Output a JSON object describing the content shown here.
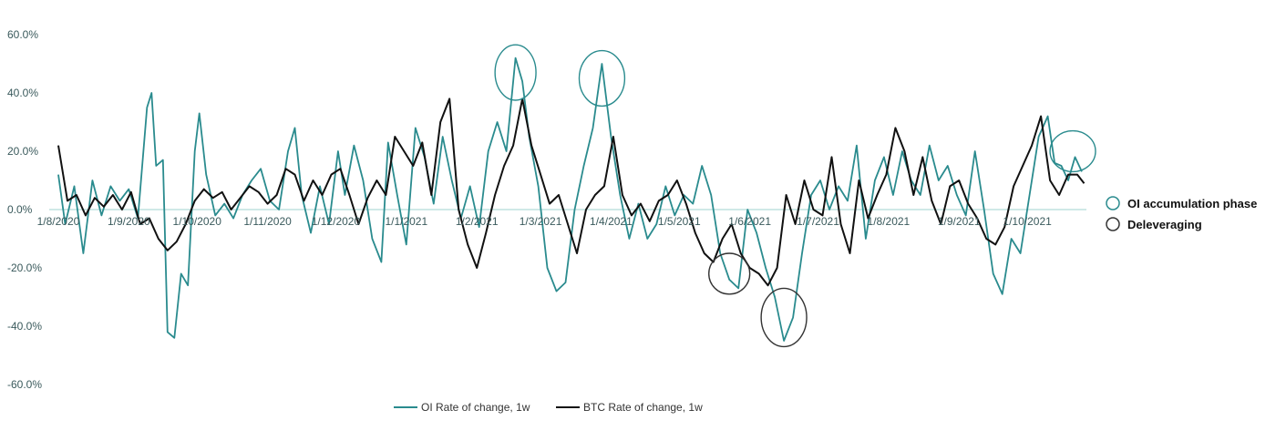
{
  "chart_data": {
    "type": "line",
    "title": "",
    "xlabel": "",
    "ylabel": "",
    "ylim": [
      -60,
      60
    ],
    "yticks": [
      60,
      40,
      20,
      0,
      -20,
      -40,
      -60
    ],
    "ytick_labels": [
      "60.0%",
      "40.0%",
      "20.0%",
      "0.0%",
      "-20.0%",
      "-40.0%",
      "-60.0%"
    ],
    "xlim": [
      "2020-07-28",
      "2021-10-27"
    ],
    "xticks": [
      {
        "date": "2020-08-01",
        "label": "1/8/2020"
      },
      {
        "date": "2020-09-01",
        "label": "1/9/2020"
      },
      {
        "date": "2020-10-01",
        "label": "1/10/2020"
      },
      {
        "date": "2020-11-01",
        "label": "1/11/2020"
      },
      {
        "date": "2020-12-01",
        "label": "1/12/2020"
      },
      {
        "date": "2021-01-01",
        "label": "1/1/2021"
      },
      {
        "date": "2021-02-01",
        "label": "1/2/2021"
      },
      {
        "date": "2021-03-01",
        "label": "1/3/2021"
      },
      {
        "date": "2021-04-01",
        "label": "1/4/2021"
      },
      {
        "date": "2021-05-01",
        "label": "1/5/2021"
      },
      {
        "date": "2021-06-01",
        "label": "1/6/2021"
      },
      {
        "date": "2021-07-01",
        "label": "1/7/2021"
      },
      {
        "date": "2021-08-01",
        "label": "1/8/2021"
      },
      {
        "date": "2021-09-01",
        "label": "1/9/2021"
      },
      {
        "date": "2021-10-01",
        "label": "1/10/2021"
      }
    ],
    "grid": false,
    "legend_position": "bottom",
    "series": [
      {
        "name": "OI Rate of change, 1w",
        "color": "#2a8b8e",
        "points": [
          [
            "2020-08-01",
            12
          ],
          [
            "2020-08-04",
            -5
          ],
          [
            "2020-08-08",
            8
          ],
          [
            "2020-08-12",
            -15
          ],
          [
            "2020-08-16",
            10
          ],
          [
            "2020-08-20",
            -2
          ],
          [
            "2020-08-24",
            8
          ],
          [
            "2020-08-28",
            3
          ],
          [
            "2020-09-01",
            7
          ],
          [
            "2020-09-05",
            -3
          ],
          [
            "2020-09-09",
            35
          ],
          [
            "2020-09-11",
            40
          ],
          [
            "2020-09-13",
            15
          ],
          [
            "2020-09-16",
            17
          ],
          [
            "2020-09-18",
            -42
          ],
          [
            "2020-09-21",
            -44
          ],
          [
            "2020-09-24",
            -22
          ],
          [
            "2020-09-27",
            -26
          ],
          [
            "2020-09-30",
            20
          ],
          [
            "2020-10-02",
            33
          ],
          [
            "2020-10-05",
            12
          ],
          [
            "2020-10-09",
            -2
          ],
          [
            "2020-10-13",
            2
          ],
          [
            "2020-10-17",
            -3
          ],
          [
            "2020-10-21",
            5
          ],
          [
            "2020-10-25",
            10
          ],
          [
            "2020-10-29",
            14
          ],
          [
            "2020-11-02",
            3
          ],
          [
            "2020-11-06",
            0
          ],
          [
            "2020-11-10",
            20
          ],
          [
            "2020-11-13",
            28
          ],
          [
            "2020-11-16",
            5
          ],
          [
            "2020-11-20",
            -8
          ],
          [
            "2020-11-24",
            8
          ],
          [
            "2020-11-28",
            -5
          ],
          [
            "2020-12-02",
            20
          ],
          [
            "2020-12-05",
            5
          ],
          [
            "2020-12-09",
            22
          ],
          [
            "2020-12-13",
            10
          ],
          [
            "2020-12-17",
            -10
          ],
          [
            "2020-12-21",
            -18
          ],
          [
            "2020-12-24",
            23
          ],
          [
            "2020-12-28",
            5
          ],
          [
            "2021-01-01",
            -12
          ],
          [
            "2021-01-05",
            28
          ],
          [
            "2021-01-09",
            18
          ],
          [
            "2021-01-13",
            2
          ],
          [
            "2021-01-17",
            25
          ],
          [
            "2021-01-21",
            10
          ],
          [
            "2021-01-25",
            -3
          ],
          [
            "2021-01-29",
            8
          ],
          [
            "2021-02-02",
            -6
          ],
          [
            "2021-02-06",
            20
          ],
          [
            "2021-02-10",
            30
          ],
          [
            "2021-02-14",
            20
          ],
          [
            "2021-02-18",
            52
          ],
          [
            "2021-02-21",
            44
          ],
          [
            "2021-02-24",
            25
          ],
          [
            "2021-02-28",
            8
          ],
          [
            "2021-03-04",
            -20
          ],
          [
            "2021-03-08",
            -28
          ],
          [
            "2021-03-12",
            -25
          ],
          [
            "2021-03-16",
            0
          ],
          [
            "2021-03-20",
            15
          ],
          [
            "2021-03-24",
            28
          ],
          [
            "2021-03-28",
            50
          ],
          [
            "2021-04-01",
            25
          ],
          [
            "2021-04-05",
            5
          ],
          [
            "2021-04-09",
            -10
          ],
          [
            "2021-04-13",
            2
          ],
          [
            "2021-04-17",
            -10
          ],
          [
            "2021-04-21",
            -5
          ],
          [
            "2021-04-25",
            8
          ],
          [
            "2021-04-29",
            -2
          ],
          [
            "2021-05-03",
            5
          ],
          [
            "2021-05-07",
            2
          ],
          [
            "2021-05-11",
            15
          ],
          [
            "2021-05-15",
            5
          ],
          [
            "2021-05-19",
            -15
          ],
          [
            "2021-05-23",
            -24
          ],
          [
            "2021-05-27",
            -27
          ],
          [
            "2021-05-31",
            0
          ],
          [
            "2021-06-04",
            -8
          ],
          [
            "2021-06-08",
            -20
          ],
          [
            "2021-06-12",
            -30
          ],
          [
            "2021-06-16",
            -45
          ],
          [
            "2021-06-20",
            -37
          ],
          [
            "2021-06-24",
            -15
          ],
          [
            "2021-06-28",
            5
          ],
          [
            "2021-07-02",
            10
          ],
          [
            "2021-07-06",
            0
          ],
          [
            "2021-07-10",
            8
          ],
          [
            "2021-07-14",
            3
          ],
          [
            "2021-07-18",
            22
          ],
          [
            "2021-07-22",
            -10
          ],
          [
            "2021-07-26",
            10
          ],
          [
            "2021-07-30",
            18
          ],
          [
            "2021-08-03",
            5
          ],
          [
            "2021-08-07",
            20
          ],
          [
            "2021-08-11",
            10
          ],
          [
            "2021-08-15",
            5
          ],
          [
            "2021-08-19",
            22
          ],
          [
            "2021-08-23",
            10
          ],
          [
            "2021-08-27",
            15
          ],
          [
            "2021-08-31",
            5
          ],
          [
            "2021-09-04",
            -2
          ],
          [
            "2021-09-08",
            20
          ],
          [
            "2021-09-12",
            0
          ],
          [
            "2021-09-16",
            -22
          ],
          [
            "2021-09-20",
            -29
          ],
          [
            "2021-09-24",
            -10
          ],
          [
            "2021-09-28",
            -15
          ],
          [
            "2021-10-02",
            5
          ],
          [
            "2021-10-06",
            25
          ],
          [
            "2021-10-10",
            32
          ],
          [
            "2021-10-13",
            16
          ],
          [
            "2021-10-16",
            15
          ],
          [
            "2021-10-19",
            10
          ],
          [
            "2021-10-22",
            18
          ],
          [
            "2021-10-25",
            13
          ]
        ]
      },
      {
        "name": "BTC Rate of change, 1w",
        "color": "#111111",
        "points": [
          [
            "2020-08-01",
            22
          ],
          [
            "2020-08-05",
            3
          ],
          [
            "2020-08-09",
            5
          ],
          [
            "2020-08-13",
            -2
          ],
          [
            "2020-08-17",
            4
          ],
          [
            "2020-08-21",
            1
          ],
          [
            "2020-08-25",
            5
          ],
          [
            "2020-08-29",
            0
          ],
          [
            "2020-09-02",
            6
          ],
          [
            "2020-09-06",
            -5
          ],
          [
            "2020-09-10",
            -3
          ],
          [
            "2020-09-14",
            -10
          ],
          [
            "2020-09-18",
            -14
          ],
          [
            "2020-09-22",
            -11
          ],
          [
            "2020-09-26",
            -5
          ],
          [
            "2020-09-30",
            3
          ],
          [
            "2020-10-04",
            7
          ],
          [
            "2020-10-08",
            4
          ],
          [
            "2020-10-12",
            6
          ],
          [
            "2020-10-16",
            0
          ],
          [
            "2020-10-20",
            4
          ],
          [
            "2020-10-24",
            8
          ],
          [
            "2020-10-28",
            6
          ],
          [
            "2020-11-01",
            2
          ],
          [
            "2020-11-05",
            5
          ],
          [
            "2020-11-09",
            14
          ],
          [
            "2020-11-13",
            12
          ],
          [
            "2020-11-17",
            3
          ],
          [
            "2020-11-21",
            10
          ],
          [
            "2020-11-25",
            5
          ],
          [
            "2020-11-29",
            12
          ],
          [
            "2020-12-03",
            14
          ],
          [
            "2020-12-07",
            5
          ],
          [
            "2020-12-11",
            -5
          ],
          [
            "2020-12-15",
            4
          ],
          [
            "2020-12-19",
            10
          ],
          [
            "2020-12-23",
            5
          ],
          [
            "2020-12-27",
            25
          ],
          [
            "2020-12-31",
            20
          ],
          [
            "2021-01-04",
            15
          ],
          [
            "2021-01-08",
            23
          ],
          [
            "2021-01-12",
            5
          ],
          [
            "2021-01-16",
            30
          ],
          [
            "2021-01-20",
            38
          ],
          [
            "2021-01-24",
            0
          ],
          [
            "2021-01-28",
            -12
          ],
          [
            "2021-02-01",
            -20
          ],
          [
            "2021-02-05",
            -8
          ],
          [
            "2021-02-09",
            5
          ],
          [
            "2021-02-13",
            15
          ],
          [
            "2021-02-17",
            22
          ],
          [
            "2021-02-21",
            38
          ],
          [
            "2021-02-25",
            22
          ],
          [
            "2021-03-01",
            12
          ],
          [
            "2021-03-05",
            2
          ],
          [
            "2021-03-09",
            5
          ],
          [
            "2021-03-13",
            -5
          ],
          [
            "2021-03-17",
            -15
          ],
          [
            "2021-03-21",
            0
          ],
          [
            "2021-03-25",
            5
          ],
          [
            "2021-03-29",
            8
          ],
          [
            "2021-04-02",
            25
          ],
          [
            "2021-04-06",
            5
          ],
          [
            "2021-04-10",
            -2
          ],
          [
            "2021-04-14",
            2
          ],
          [
            "2021-04-18",
            -4
          ],
          [
            "2021-04-22",
            3
          ],
          [
            "2021-04-26",
            5
          ],
          [
            "2021-04-30",
            10
          ],
          [
            "2021-05-04",
            2
          ],
          [
            "2021-05-08",
            -8
          ],
          [
            "2021-05-12",
            -15
          ],
          [
            "2021-05-16",
            -18
          ],
          [
            "2021-05-20",
            -10
          ],
          [
            "2021-05-24",
            -5
          ],
          [
            "2021-05-28",
            -15
          ],
          [
            "2021-06-01",
            -20
          ],
          [
            "2021-06-05",
            -22
          ],
          [
            "2021-06-09",
            -26
          ],
          [
            "2021-06-13",
            -20
          ],
          [
            "2021-06-17",
            5
          ],
          [
            "2021-06-21",
            -5
          ],
          [
            "2021-06-25",
            10
          ],
          [
            "2021-06-29",
            0
          ],
          [
            "2021-07-03",
            -2
          ],
          [
            "2021-07-07",
            18
          ],
          [
            "2021-07-11",
            -5
          ],
          [
            "2021-07-15",
            -15
          ],
          [
            "2021-07-19",
            10
          ],
          [
            "2021-07-23",
            -3
          ],
          [
            "2021-07-27",
            5
          ],
          [
            "2021-07-31",
            12
          ],
          [
            "2021-08-04",
            28
          ],
          [
            "2021-08-08",
            20
          ],
          [
            "2021-08-12",
            5
          ],
          [
            "2021-08-16",
            18
          ],
          [
            "2021-08-20",
            3
          ],
          [
            "2021-08-24",
            -5
          ],
          [
            "2021-08-28",
            8
          ],
          [
            "2021-09-01",
            10
          ],
          [
            "2021-09-05",
            2
          ],
          [
            "2021-09-09",
            -3
          ],
          [
            "2021-09-13",
            -10
          ],
          [
            "2021-09-17",
            -12
          ],
          [
            "2021-09-21",
            -6
          ],
          [
            "2021-09-25",
            8
          ],
          [
            "2021-09-29",
            15
          ],
          [
            "2021-10-03",
            22
          ],
          [
            "2021-10-07",
            32
          ],
          [
            "2021-10-11",
            10
          ],
          [
            "2021-10-15",
            5
          ],
          [
            "2021-10-19",
            12
          ],
          [
            "2021-10-23",
            12
          ],
          [
            "2021-10-26",
            9
          ]
        ]
      }
    ],
    "annotations": [
      {
        "type": "ellipse",
        "phase": "OI accumulation phase",
        "date": "2021-02-18",
        "value": 47,
        "date_radius_days": 9,
        "value_radius": 9.5
      },
      {
        "type": "ellipse",
        "phase": "OI accumulation phase",
        "date": "2021-03-28",
        "value": 45,
        "date_radius_days": 10,
        "value_radius": 9.5
      },
      {
        "type": "ellipse",
        "phase": "OI accumulation phase",
        "date": "2021-10-21",
        "value": 20,
        "date_radius_days": 10,
        "value_radius": 7
      },
      {
        "type": "ellipse",
        "phase": "Deleveraging",
        "date": "2021-05-23",
        "value": -22,
        "date_radius_days": 9,
        "value_radius": 7
      },
      {
        "type": "ellipse",
        "phase": "Deleveraging",
        "date": "2021-06-16",
        "value": -37,
        "date_radius_days": 10,
        "value_radius": 10
      }
    ],
    "phase_legend": [
      {
        "label": "OI accumulation phase",
        "color": "#2a8b8e"
      },
      {
        "label": "Deleveraging",
        "color": "#333333"
      }
    ]
  }
}
